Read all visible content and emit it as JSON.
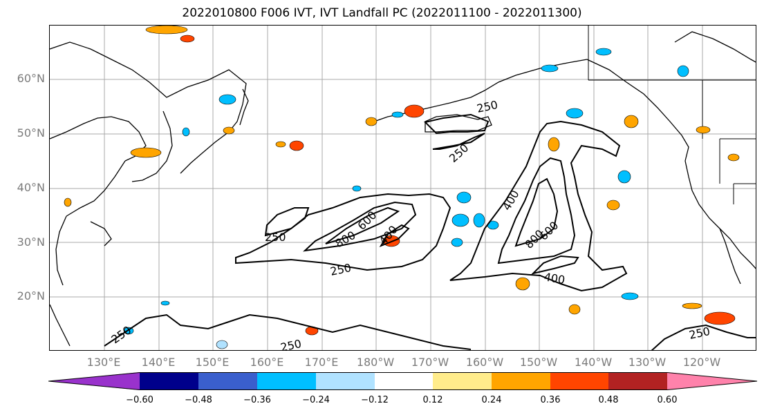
{
  "title": "2022010800 F006 IVT, IVT Landfall PC (2022011100 - 2022011300)",
  "lat_labels": [
    "60°N",
    "50°N",
    "40°N",
    "30°N",
    "20°N"
  ],
  "lon_labels": [
    "130°E",
    "140°E",
    "150°E",
    "160°E",
    "170°E",
    "180°W",
    "170°W",
    "160°W",
    "150°W",
    "140°W",
    "130°W",
    "120°W"
  ],
  "contour_labels": [
    "250",
    "250",
    "250",
    "250",
    "250",
    "250",
    "250",
    "400",
    "400",
    "400",
    "600",
    "600",
    "800",
    "800"
  ],
  "colorbar": {
    "ticks": [
      "−0.60",
      "−0.48",
      "−0.36",
      "−0.24",
      "−0.12",
      "0.12",
      "0.24",
      "0.36",
      "0.48",
      "0.60"
    ],
    "colors": [
      "#9932cc",
      "#00008b",
      "#3a5fcd",
      "#00bfff",
      "#b0e2ff",
      "#ffffff",
      "#ffec8b",
      "#ffa500",
      "#ff4500",
      "#b22222",
      "#ff82ab"
    ]
  }
}
